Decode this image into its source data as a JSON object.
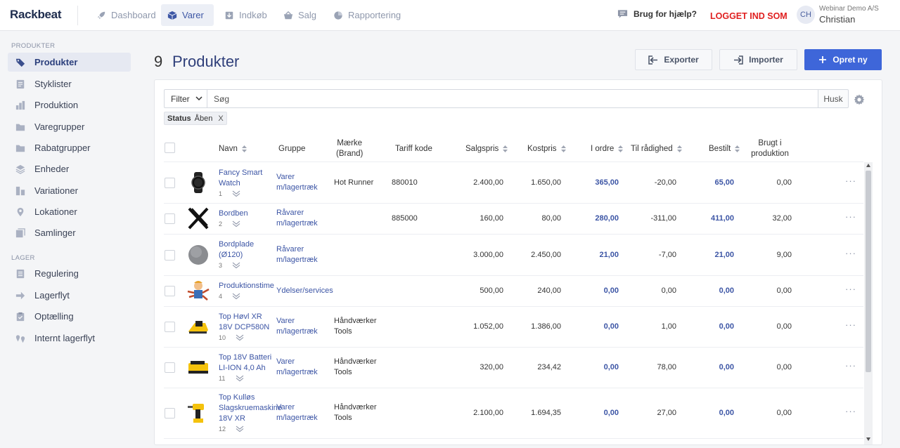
{
  "app": {
    "logo": "Rackbeat"
  },
  "topnav": [
    {
      "label": "Dashboard",
      "icon": "rocket-icon",
      "active": false
    },
    {
      "label": "Varer",
      "icon": "box-icon",
      "active": true
    },
    {
      "label": "Indkøb",
      "icon": "download-icon",
      "active": false
    },
    {
      "label": "Salg",
      "icon": "basket-icon",
      "active": false
    },
    {
      "label": "Rapportering",
      "icon": "pie-chart-icon",
      "active": false
    }
  ],
  "header": {
    "help": "Brug for hjælp?",
    "logged_in": "LOGGET IND SOM",
    "avatar": "CH",
    "company": "Webinar Demo A/S",
    "user": "Christian"
  },
  "sidebar": {
    "section1": "PRODUKTER",
    "items1": [
      {
        "label": "Produkter",
        "icon": "tag-icon",
        "active": true
      },
      {
        "label": "Styklister",
        "icon": "list-icon"
      },
      {
        "label": "Produktion",
        "icon": "bar-chart-icon"
      },
      {
        "label": "Varegrupper",
        "icon": "folder-icon"
      },
      {
        "label": "Rabatgrupper",
        "icon": "folder-icon"
      },
      {
        "label": "Enheder",
        "icon": "layers-icon"
      },
      {
        "label": "Variationer",
        "icon": "variations-icon"
      },
      {
        "label": "Lokationer",
        "icon": "map-pin-icon"
      },
      {
        "label": "Samlinger",
        "icon": "collection-icon"
      }
    ],
    "section2": "LAGER",
    "items2": [
      {
        "label": "Regulering",
        "icon": "adjust-icon"
      },
      {
        "label": "Lagerflyt",
        "icon": "arrow-right-icon"
      },
      {
        "label": "Optælling",
        "icon": "clipboard-icon"
      },
      {
        "label": "Internt lagerflyt",
        "icon": "pins-icon"
      }
    ]
  },
  "page": {
    "count": "9",
    "title": "Produkter",
    "export": "Exporter",
    "import": "Importer",
    "create": "Opret ny"
  },
  "toolbar": {
    "filter": "Filter",
    "search_placeholder": "Søg",
    "save": "Husk",
    "tag_key": "Status",
    "tag_value": "Åben",
    "tag_remove": "X"
  },
  "columns": {
    "name": "Navn",
    "group": "Gruppe",
    "brand1": "Mærke",
    "brand2": "(Brand)",
    "tariff": "Tariff kode",
    "sale": "Salgspris",
    "cost": "Kostpris",
    "order": "I ordre",
    "avail": "Til rådighed",
    "ordered": "Bestilt",
    "used1": "Brugt i",
    "used2": "produktion"
  },
  "rows": [
    {
      "name": [
        "Fancy Smart",
        "Watch"
      ],
      "num": "1",
      "group": [
        "Varer",
        "m/lagertræk"
      ],
      "brand": [
        "Hot Runner"
      ],
      "tariff": "880010",
      "sale": "2.400,00",
      "cost": "1.650,00",
      "order": "365,00",
      "avail": "-20,00",
      "ordered": "65,00",
      "used": "0,00",
      "img": "watch"
    },
    {
      "name": [
        "Bordben"
      ],
      "num": "2",
      "group": [
        "Råvarer",
        "m/lagertræk"
      ],
      "brand": [],
      "tariff": "885000",
      "sale": "160,00",
      "cost": "80,00",
      "order": "280,00",
      "avail": "-311,00",
      "ordered": "411,00",
      "used": "32,00",
      "img": "x"
    },
    {
      "name": [
        "Bordplade",
        "(Ø120)"
      ],
      "num": "3",
      "group": [
        "Råvarer",
        "m/lagertræk"
      ],
      "brand": [],
      "tariff": "",
      "sale": "3.000,00",
      "cost": "2.450,00",
      "order": "21,00",
      "avail": "-7,00",
      "ordered": "21,00",
      "used": "9,00",
      "img": "disc"
    },
    {
      "name": [
        "Produktionstime"
      ],
      "num": "4",
      "group": [
        "Ydelser/services"
      ],
      "brand": [],
      "tariff": "",
      "sale": "500,00",
      "cost": "240,00",
      "order": "0,00",
      "avail": "0,00",
      "ordered": "0,00",
      "used": "0,00",
      "img": "worker"
    },
    {
      "name": [
        "Top Høvl XR",
        "18V DCP580N"
      ],
      "num": "10",
      "group": [
        "Varer",
        "m/lagertræk"
      ],
      "brand": [
        "Håndværker",
        "Tools"
      ],
      "tariff": "",
      "sale": "1.052,00",
      "cost": "1.386,00",
      "order": "0,00",
      "avail": "1,00",
      "ordered": "0,00",
      "used": "0,00",
      "img": "planer"
    },
    {
      "name": [
        "Top 18V Batteri",
        "LI-ION 4,0 Ah"
      ],
      "num": "11",
      "group": [
        "Varer",
        "m/lagertræk"
      ],
      "brand": [
        "Håndværker",
        "Tools"
      ],
      "tariff": "",
      "sale": "320,00",
      "cost": "234,42",
      "order": "0,00",
      "avail": "78,00",
      "ordered": "0,00",
      "used": "0,00",
      "img": "battery"
    },
    {
      "name": [
        "Top Kulløs",
        "Slagskruemaskine",
        "18V XR"
      ],
      "num": "12",
      "group": [
        "Varer",
        "m/lagertræk"
      ],
      "brand": [
        "Håndværker",
        "Tools"
      ],
      "tariff": "",
      "sale": "2.100,00",
      "cost": "1.694,35",
      "order": "0,00",
      "avail": "27,00",
      "ordered": "0,00",
      "used": "0,00",
      "img": "drill"
    }
  ]
}
